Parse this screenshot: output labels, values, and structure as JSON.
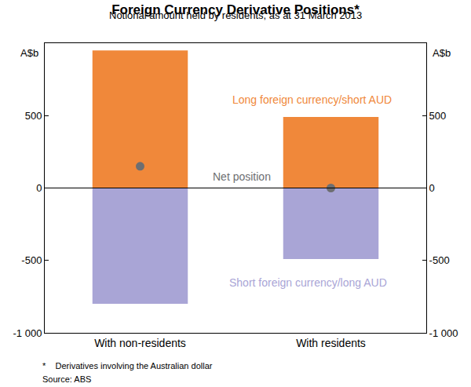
{
  "chart_data": {
    "type": "bar",
    "title": "Foreign Currency Derivative Positions*",
    "subtitle": "Notional amount held by residents, as at 31 March 2013",
    "ylabel": "A$b",
    "categories": [
      "With non-residents",
      "With residents"
    ],
    "series": [
      {
        "name": "Long foreign currency/short AUD",
        "type": "bar",
        "color": "#f0883a",
        "values": [
          950,
          490
        ]
      },
      {
        "name": "Short foreign currency/long AUD",
        "type": "bar",
        "color": "#a9a5d6",
        "values": [
          -800,
          -490
        ]
      },
      {
        "name": "Net position",
        "type": "scatter",
        "marker": "circle",
        "color": "#6d6e71",
        "values": [
          150,
          0
        ]
      }
    ],
    "stacked": true,
    "grid": false,
    "ylim": [
      -1000,
      1000
    ],
    "yticks": [
      {
        "value": -1000,
        "label": "-1 000"
      },
      -500,
      0,
      500
    ],
    "notes": [
      "*    Derivatives involving the Australian dollar",
      "Source: ABS"
    ]
  }
}
